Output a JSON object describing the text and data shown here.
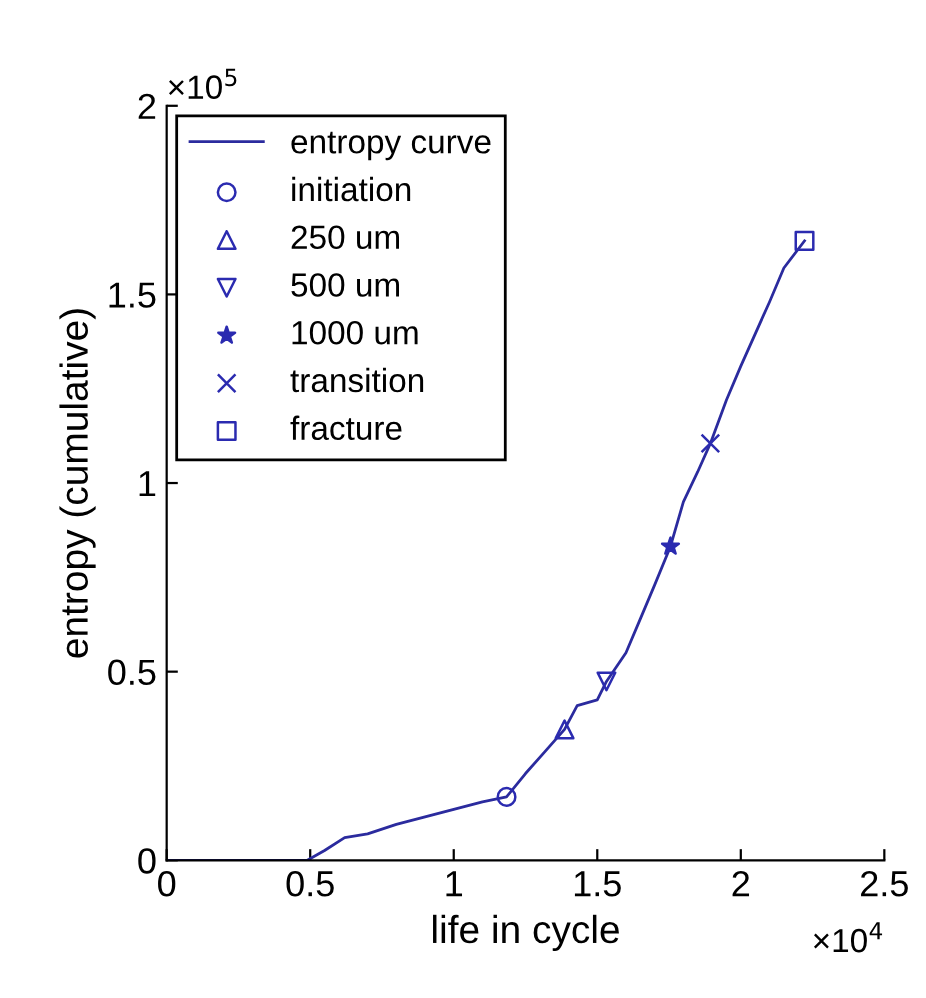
{
  "chart_data": {
    "type": "line",
    "xlabel": "life in cycle",
    "ylabel": "entropy (cumulative)",
    "annotations": [
      "×10$^{5}$",
      "×10$^{4}$"
    ],
    "xlim": [
      0,
      2.5
    ],
    "ylim": [
      0,
      2
    ],
    "xticks": [
      0,
      0.5,
      1,
      1.5,
      2,
      2.5
    ],
    "yticks": [
      0,
      0.5,
      1,
      1.5,
      2
    ],
    "grid": false,
    "legend": "top left",
    "series": [
      {
        "name": "entropy curve",
        "color": "#2b2b9e",
        "marker": "none",
        "line_style": "solid",
        "x": [
          0,
          0.49,
          0.55,
          0.62,
          0.7,
          0.8,
          0.9,
          1.0,
          1.1,
          1.184,
          1.25,
          1.32,
          1.386,
          1.43,
          1.5,
          1.532,
          1.6,
          1.65,
          1.7,
          1.755,
          1.8,
          1.85,
          1.894,
          1.95,
          2.0,
          2.1,
          2.15,
          2.222
        ],
        "values": [
          0,
          0,
          0.026,
          0.06,
          0.07,
          0.095,
          0.115,
          0.135,
          0.155,
          0.168,
          0.23,
          0.29,
          0.347,
          0.41,
          0.425,
          0.474,
          0.55,
          0.64,
          0.73,
          0.832,
          0.95,
          1.03,
          1.105,
          1.22,
          1.31,
          1.48,
          1.57,
          1.642
        ]
      },
      {
        "name": "initiation",
        "type": "scatter",
        "color": "#2b2bb0",
        "marker": "circle",
        "x": [
          1.184
        ],
        "values": [
          0.168
        ]
      },
      {
        "name": "250 um",
        "type": "scatter",
        "color": "#2b2bb0",
        "marker": "triangle",
        "x": [
          1.386
        ],
        "values": [
          0.347
        ]
      },
      {
        "name": "500 um",
        "type": "scatter",
        "color": "#2b2bb0",
        "marker": "triangle_down",
        "x": [
          1.532
        ],
        "values": [
          0.474
        ]
      },
      {
        "name": "1000 um",
        "type": "scatter",
        "color": "#2b2bb0",
        "marker": "star",
        "x": [
          1.755
        ],
        "values": [
          0.832
        ]
      },
      {
        "name": "transition",
        "type": "scatter",
        "color": "#2b2bb0",
        "marker": "cross",
        "x": [
          1.894
        ],
        "values": [
          1.105
        ]
      },
      {
        "name": "fracture",
        "type": "scatter",
        "color": "#2b2bb0",
        "marker": "square",
        "x": [
          2.222
        ],
        "values": [
          1.642
        ]
      }
    ]
  }
}
